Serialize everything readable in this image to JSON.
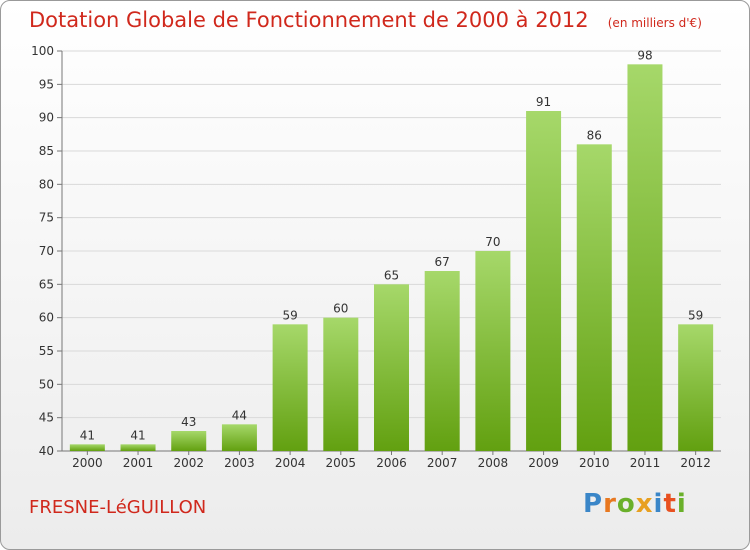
{
  "colors": {
    "title": "#d0281c",
    "bar_light": "#a6d86a",
    "bar_dark": "#62a010",
    "grid": "#d9d9d9",
    "axis": "#777777"
  },
  "header": {
    "title": "Dotation Globale de Fonctionnement de 2000 à 2012",
    "unit": "(en milliers d'€)"
  },
  "footer": {
    "commune": "FRESNE-LéGUILLON",
    "logo_letters": [
      "P",
      "r",
      "o",
      "x",
      "i",
      "t",
      "i"
    ],
    "logo_colors": [
      "#3a86c8",
      "#e87820",
      "#6ab02a",
      "#e8a020",
      "#3a86c8",
      "#e85020",
      "#6ab02a"
    ]
  },
  "chart_data": {
    "type": "bar",
    "categories": [
      "2000",
      "2001",
      "2002",
      "2003",
      "2004",
      "2005",
      "2006",
      "2007",
      "2008",
      "2009",
      "2010",
      "2011",
      "2012"
    ],
    "values": [
      41,
      41,
      43,
      44,
      59,
      60,
      65,
      67,
      70,
      91,
      86,
      98,
      59
    ],
    "ylim": [
      40,
      100
    ],
    "yticks": [
      40,
      45,
      50,
      55,
      60,
      65,
      70,
      75,
      80,
      85,
      90,
      95,
      100
    ],
    "grid": true,
    "title": "Dotation Globale de Fonctionnement de 2000 à 2012",
    "xlabel": "",
    "ylabel": ""
  }
}
